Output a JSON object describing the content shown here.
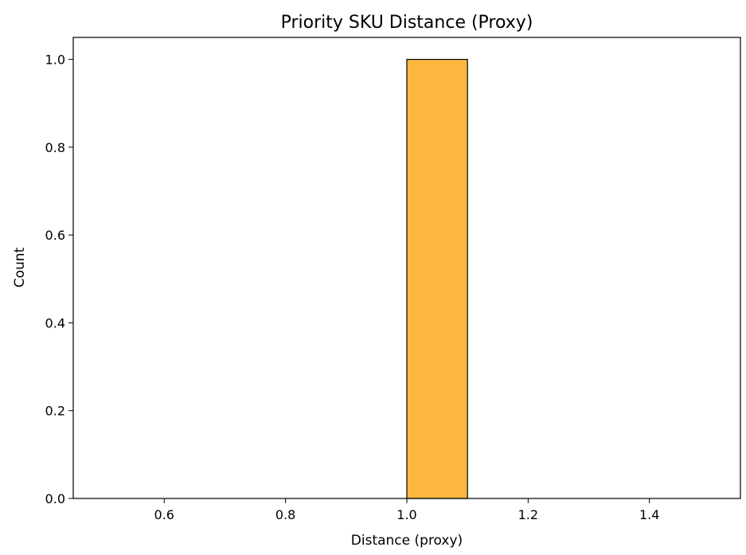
{
  "chart_data": {
    "type": "bar",
    "title": "Priority SKU Distance (Proxy)",
    "xlabel": "Distance (proxy)",
    "ylabel": "Count",
    "xlim": [
      0.45,
      1.55
    ],
    "ylim": [
      0,
      1.05
    ],
    "xticks": [
      0.6,
      0.8,
      1.0,
      1.2,
      1.4
    ],
    "xtick_labels": [
      "0.6",
      "0.8",
      "1.0",
      "1.2",
      "1.4"
    ],
    "yticks": [
      0.0,
      0.2,
      0.4,
      0.6,
      0.8,
      1.0
    ],
    "ytick_labels": [
      "0.0",
      "0.2",
      "0.4",
      "0.6",
      "0.8",
      "1.0"
    ],
    "bin_edges": [
      0.5,
      0.6,
      0.7,
      0.8,
      0.9,
      1.0,
      1.1,
      1.2,
      1.3,
      1.4,
      1.5
    ],
    "values": [
      0,
      0,
      0,
      0,
      0,
      1,
      0,
      0,
      0,
      0
    ],
    "bar_color": "#FDB73F",
    "edge_color": "#000000",
    "grid": false
  }
}
